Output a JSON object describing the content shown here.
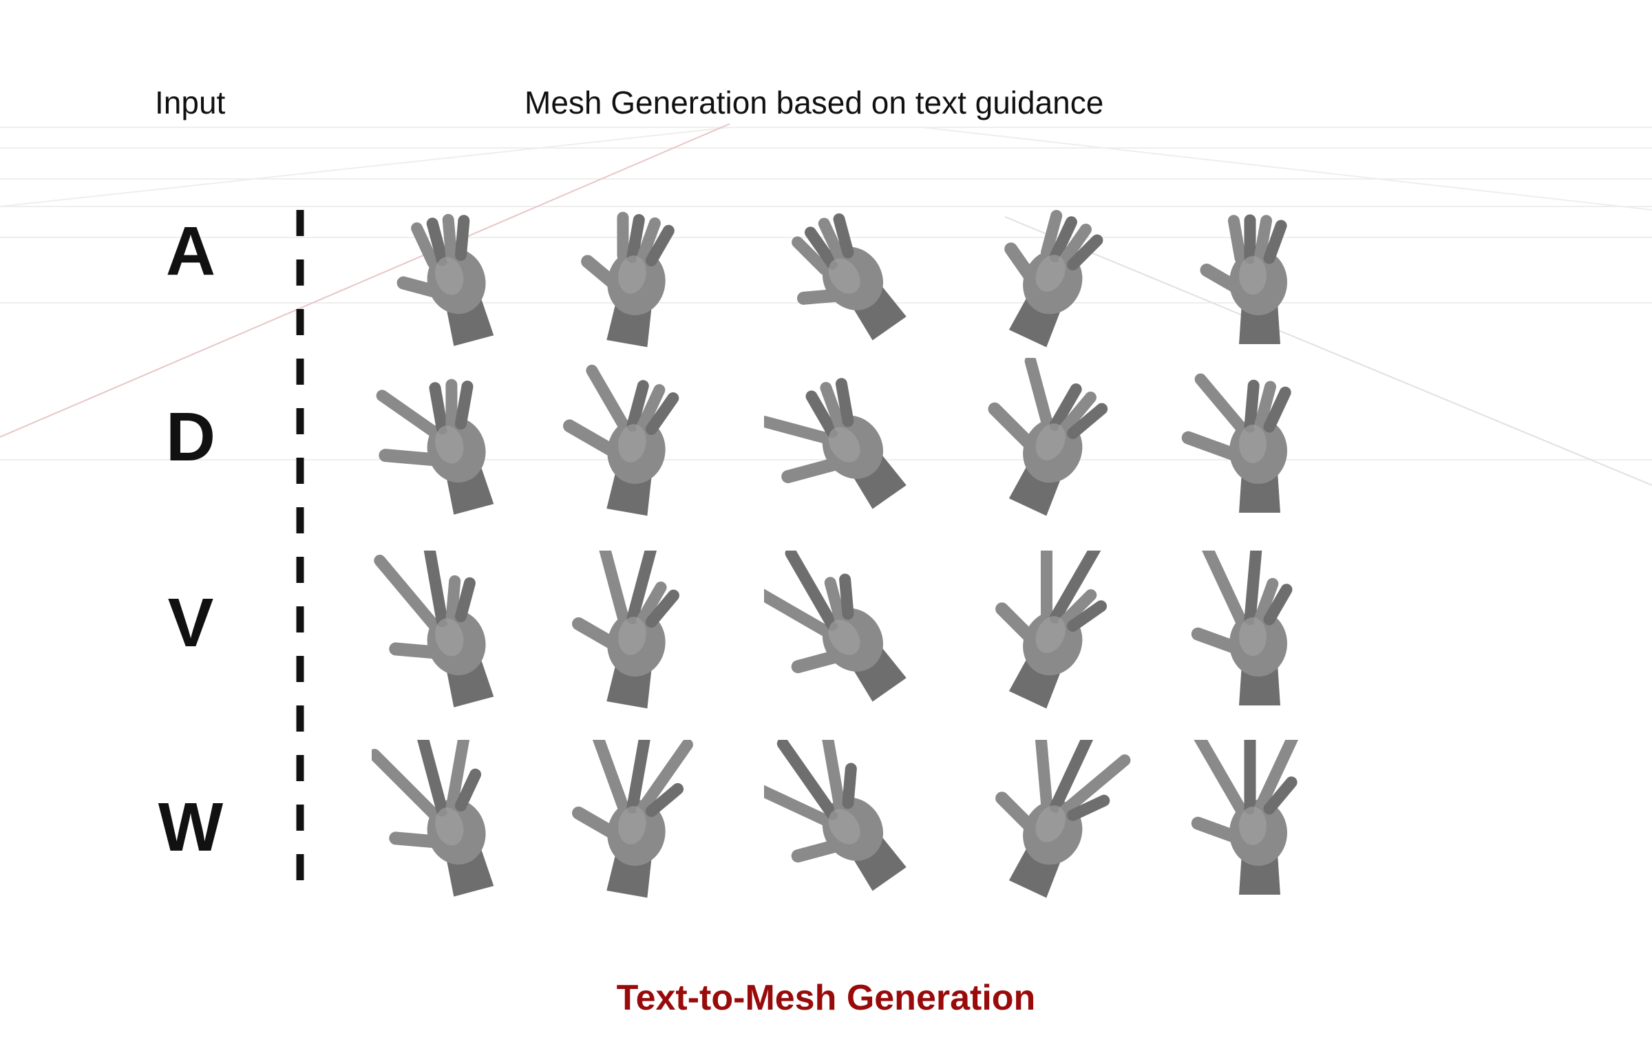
{
  "header": {
    "input_label": "Input",
    "generation_label": "Mesh Generation based on text guidance"
  },
  "rows": [
    {
      "letter": "A",
      "hands": [
        "hand-mesh-icon",
        "hand-mesh-icon",
        "hand-mesh-icon",
        "hand-mesh-icon",
        "hand-mesh-icon"
      ]
    },
    {
      "letter": "D",
      "hands": [
        "hand-mesh-icon",
        "hand-mesh-icon",
        "hand-mesh-icon",
        "hand-mesh-icon",
        "hand-mesh-icon"
      ]
    },
    {
      "letter": "V",
      "hands": [
        "hand-mesh-icon",
        "hand-mesh-icon",
        "hand-mesh-icon",
        "hand-mesh-icon",
        "hand-mesh-icon"
      ]
    },
    {
      "letter": "W",
      "hands": [
        "hand-mesh-icon",
        "hand-mesh-icon",
        "hand-mesh-icon",
        "hand-mesh-icon",
        "hand-mesh-icon"
      ]
    }
  ],
  "caption": "Text-to-Mesh Generation",
  "colors": {
    "mesh_fill": "#8a8a8a",
    "mesh_shade": "#6e6e6e",
    "caption": "#990a0a",
    "text": "#111111"
  }
}
